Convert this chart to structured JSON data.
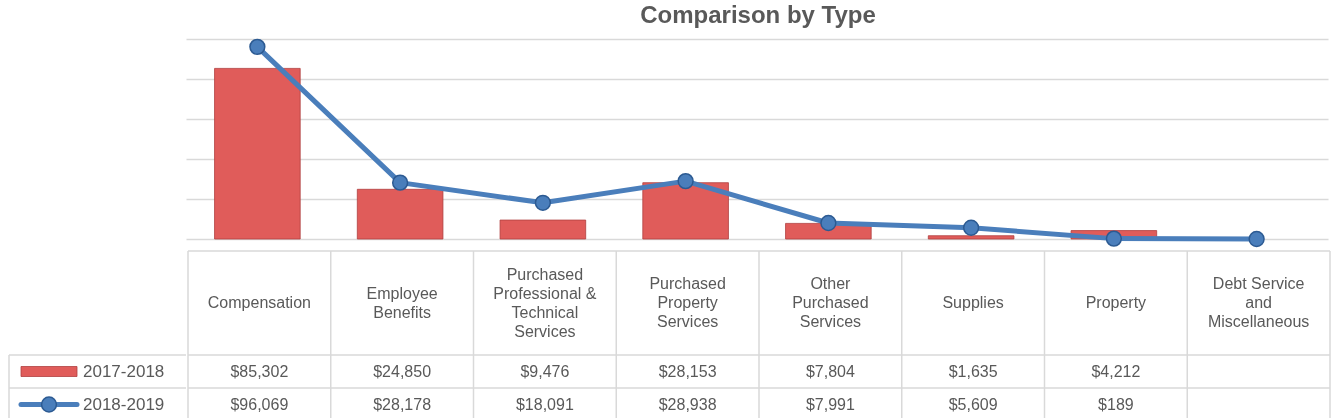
{
  "chart_data": {
    "type": "bar",
    "title": "Comparison by Type",
    "categories": [
      "Compensation",
      "Employee Benefits",
      "Purchased Professional & Technical Services",
      "Purchased Property Services",
      "Other Purchased Services",
      "Supplies",
      "Property",
      "Debt Service and Miscellaneous"
    ],
    "series": [
      {
        "name": "2017-2018",
        "color": "#e05c5a",
        "values": [
          85302,
          24850,
          9476,
          28153,
          7804,
          1635,
          4212,
          null
        ],
        "value_labels": [
          "$85,302",
          "$24,850",
          "$9,476",
          "$28,153",
          "$7,804",
          "$1,635",
          "$4,212",
          null
        ]
      },
      {
        "name": "2018-2019",
        "type": "line",
        "color": "#4a7ebb",
        "values": [
          96069,
          28178,
          18091,
          28938,
          7991,
          5609,
          189,
          0
        ],
        "value_labels": [
          "$96,069",
          "$28,178",
          "$18,091",
          "$28,938",
          "$7,991",
          "$5,609",
          "$189",
          null
        ]
      }
    ],
    "ylim": [
      0,
      100000
    ],
    "yticks": [
      {
        "value": 0,
        "label": null
      },
      {
        "value": 20000,
        "label": null
      },
      {
        "value": 40000,
        "label": null
      },
      {
        "value": 60000,
        "label": null
      },
      {
        "value": 80000,
        "label": null
      },
      {
        "value": 100000,
        "label": null
      }
    ],
    "grid": "y",
    "legend": "bottom left",
    "tick_labels": "x",
    "marker": "circle",
    "line_style": "solid"
  }
}
